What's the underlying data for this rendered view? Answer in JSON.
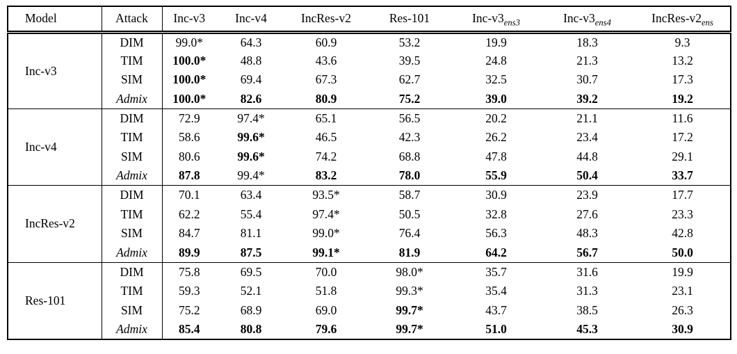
{
  "colors": {
    "text": "#000000",
    "border": "#000000",
    "background": "#ffffff"
  },
  "table": {
    "header": {
      "columns": [
        {
          "main": "Model",
          "sub": ""
        },
        {
          "main": "Attack",
          "sub": ""
        },
        {
          "main": "Inc-v3",
          "sub": ""
        },
        {
          "main": "Inc-v4",
          "sub": ""
        },
        {
          "main": "IncRes-v2",
          "sub": ""
        },
        {
          "main": "Res-101",
          "sub": ""
        },
        {
          "main": "Inc-v3",
          "sub": "ens3"
        },
        {
          "main": "Inc-v3",
          "sub": "ens4"
        },
        {
          "main": "IncRes-v2",
          "sub": "ens"
        }
      ]
    },
    "groups": [
      {
        "model": "Inc-v3",
        "rows": [
          {
            "attack": "DIM",
            "italic": false,
            "cells": [
              {
                "v": "99.0*",
                "b": false
              },
              {
                "v": "64.3",
                "b": false
              },
              {
                "v": "60.9",
                "b": false
              },
              {
                "v": "53.2",
                "b": false
              },
              {
                "v": "19.9",
                "b": false
              },
              {
                "v": "18.3",
                "b": false
              },
              {
                "v": "9.3",
                "b": false
              }
            ]
          },
          {
            "attack": "TIM",
            "italic": false,
            "cells": [
              {
                "v": "100.0*",
                "b": true
              },
              {
                "v": "48.8",
                "b": false
              },
              {
                "v": "43.6",
                "b": false
              },
              {
                "v": "39.5",
                "b": false
              },
              {
                "v": "24.8",
                "b": false
              },
              {
                "v": "21.3",
                "b": false
              },
              {
                "v": "13.2",
                "b": false
              }
            ]
          },
          {
            "attack": "SIM",
            "italic": false,
            "cells": [
              {
                "v": "100.0*",
                "b": true
              },
              {
                "v": "69.4",
                "b": false
              },
              {
                "v": "67.3",
                "b": false
              },
              {
                "v": "62.7",
                "b": false
              },
              {
                "v": "32.5",
                "b": false
              },
              {
                "v": "30.7",
                "b": false
              },
              {
                "v": "17.3",
                "b": false
              }
            ]
          },
          {
            "attack": "Admix",
            "italic": true,
            "cells": [
              {
                "v": "100.0*",
                "b": true
              },
              {
                "v": "82.6",
                "b": true
              },
              {
                "v": "80.9",
                "b": true
              },
              {
                "v": "75.2",
                "b": true
              },
              {
                "v": "39.0",
                "b": true
              },
              {
                "v": "39.2",
                "b": true
              },
              {
                "v": "19.2",
                "b": true
              }
            ]
          }
        ]
      },
      {
        "model": "Inc-v4",
        "rows": [
          {
            "attack": "DIM",
            "italic": false,
            "cells": [
              {
                "v": "72.9",
                "b": false
              },
              {
                "v": "97.4*",
                "b": false
              },
              {
                "v": "65.1",
                "b": false
              },
              {
                "v": "56.5",
                "b": false
              },
              {
                "v": "20.2",
                "b": false
              },
              {
                "v": "21.1",
                "b": false
              },
              {
                "v": "11.6",
                "b": false
              }
            ]
          },
          {
            "attack": "TIM",
            "italic": false,
            "cells": [
              {
                "v": "58.6",
                "b": false
              },
              {
                "v": "99.6*",
                "b": true
              },
              {
                "v": "46.5",
                "b": false
              },
              {
                "v": "42.3",
                "b": false
              },
              {
                "v": "26.2",
                "b": false
              },
              {
                "v": "23.4",
                "b": false
              },
              {
                "v": "17.2",
                "b": false
              }
            ]
          },
          {
            "attack": "SIM",
            "italic": false,
            "cells": [
              {
                "v": "80.6",
                "b": false
              },
              {
                "v": "99.6*",
                "b": true
              },
              {
                "v": "74.2",
                "b": false
              },
              {
                "v": "68.8",
                "b": false
              },
              {
                "v": "47.8",
                "b": false
              },
              {
                "v": "44.8",
                "b": false
              },
              {
                "v": "29.1",
                "b": false
              }
            ]
          },
          {
            "attack": "Admix",
            "italic": true,
            "cells": [
              {
                "v": "87.8",
                "b": true
              },
              {
                "v": "99.4*",
                "b": false
              },
              {
                "v": "83.2",
                "b": true
              },
              {
                "v": "78.0",
                "b": true
              },
              {
                "v": "55.9",
                "b": true
              },
              {
                "v": "50.4",
                "b": true
              },
              {
                "v": "33.7",
                "b": true
              }
            ]
          }
        ]
      },
      {
        "model": "IncRes-v2",
        "rows": [
          {
            "attack": "DIM",
            "italic": false,
            "cells": [
              {
                "v": "70.1",
                "b": false
              },
              {
                "v": "63.4",
                "b": false
              },
              {
                "v": "93.5*",
                "b": false
              },
              {
                "v": "58.7",
                "b": false
              },
              {
                "v": "30.9",
                "b": false
              },
              {
                "v": "23.9",
                "b": false
              },
              {
                "v": "17.7",
                "b": false
              }
            ]
          },
          {
            "attack": "TIM",
            "italic": false,
            "cells": [
              {
                "v": "62.2",
                "b": false
              },
              {
                "v": "55.4",
                "b": false
              },
              {
                "v": "97.4*",
                "b": false
              },
              {
                "v": "50.5",
                "b": false
              },
              {
                "v": "32.8",
                "b": false
              },
              {
                "v": "27.6",
                "b": false
              },
              {
                "v": "23.3",
                "b": false
              }
            ]
          },
          {
            "attack": "SIM",
            "italic": false,
            "cells": [
              {
                "v": "84.7",
                "b": false
              },
              {
                "v": "81.1",
                "b": false
              },
              {
                "v": "99.0*",
                "b": false
              },
              {
                "v": "76.4",
                "b": false
              },
              {
                "v": "56.3",
                "b": false
              },
              {
                "v": "48.3",
                "b": false
              },
              {
                "v": "42.8",
                "b": false
              }
            ]
          },
          {
            "attack": "Admix",
            "italic": true,
            "cells": [
              {
                "v": "89.9",
                "b": true
              },
              {
                "v": "87.5",
                "b": true
              },
              {
                "v": "99.1*",
                "b": true
              },
              {
                "v": "81.9",
                "b": true
              },
              {
                "v": "64.2",
                "b": true
              },
              {
                "v": "56.7",
                "b": true
              },
              {
                "v": "50.0",
                "b": true
              }
            ]
          }
        ]
      },
      {
        "model": "Res-101",
        "rows": [
          {
            "attack": "DIM",
            "italic": false,
            "cells": [
              {
                "v": "75.8",
                "b": false
              },
              {
                "v": "69.5",
                "b": false
              },
              {
                "v": "70.0",
                "b": false
              },
              {
                "v": "98.0*",
                "b": false
              },
              {
                "v": "35.7",
                "b": false
              },
              {
                "v": "31.6",
                "b": false
              },
              {
                "v": "19.9",
                "b": false
              }
            ]
          },
          {
            "attack": "TIM",
            "italic": false,
            "cells": [
              {
                "v": "59.3",
                "b": false
              },
              {
                "v": "52.1",
                "b": false
              },
              {
                "v": "51.8",
                "b": false
              },
              {
                "v": "99.3*",
                "b": false
              },
              {
                "v": "35.4",
                "b": false
              },
              {
                "v": "31.3",
                "b": false
              },
              {
                "v": "23.1",
                "b": false
              }
            ]
          },
          {
            "attack": "SIM",
            "italic": false,
            "cells": [
              {
                "v": "75.2",
                "b": false
              },
              {
                "v": "68.9",
                "b": false
              },
              {
                "v": "69.0",
                "b": false
              },
              {
                "v": "99.7*",
                "b": true
              },
              {
                "v": "43.7",
                "b": false
              },
              {
                "v": "38.5",
                "b": false
              },
              {
                "v": "26.3",
                "b": false
              }
            ]
          },
          {
            "attack": "Admix",
            "italic": true,
            "cells": [
              {
                "v": "85.4",
                "b": true
              },
              {
                "v": "80.8",
                "b": true
              },
              {
                "v": "79.6",
                "b": true
              },
              {
                "v": "99.7*",
                "b": true
              },
              {
                "v": "51.0",
                "b": true
              },
              {
                "v": "45.3",
                "b": true
              },
              {
                "v": "30.9",
                "b": true
              }
            ]
          }
        ]
      }
    ]
  }
}
